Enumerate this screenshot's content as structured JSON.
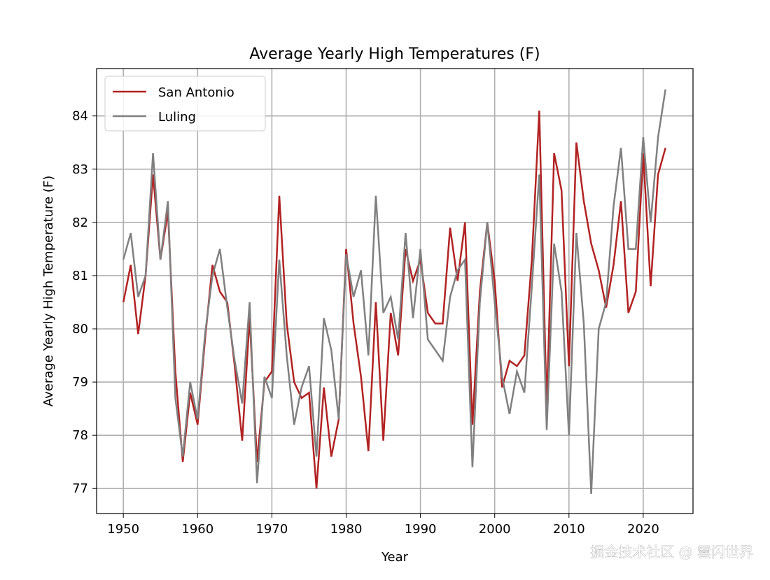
{
  "chart_data": {
    "type": "line",
    "title": "Average Yearly High Temperatures (F)",
    "xlabel": "Year",
    "ylabel": "Average Yearly High Temperature (F)",
    "xlim": [
      1946.4,
      2026.7
    ],
    "ylim": [
      76.53,
      84.89
    ],
    "xticks": [
      1950,
      1960,
      1970,
      1980,
      1990,
      2000,
      2010,
      2020
    ],
    "yticks": [
      77,
      78,
      79,
      80,
      81,
      82,
      83,
      84
    ],
    "grid": true,
    "legend_position": "top-left",
    "x_start": 1950,
    "series": [
      {
        "name": "San Antonio",
        "color": "#b22222",
        "values": [
          80.5,
          81.2,
          79.9,
          81.0,
          82.9,
          81.3,
          82.2,
          79.2,
          77.5,
          78.8,
          78.2,
          79.8,
          81.2,
          80.7,
          80.5,
          79.3,
          77.9,
          80.2,
          77.5,
          79.0,
          79.2,
          82.5,
          80.1,
          79.0,
          78.7,
          78.8,
          77.0,
          78.9,
          77.6,
          78.3,
          81.5,
          80.1,
          79.1,
          77.7,
          80.5,
          77.9,
          80.3,
          79.5,
          81.5,
          80.9,
          81.3,
          80.3,
          80.1,
          80.1,
          81.9,
          80.9,
          82.0,
          78.2,
          80.7,
          82.0,
          80.9,
          78.9,
          79.4,
          79.3,
          79.5,
          81.3,
          84.1,
          78.5,
          83.3,
          82.6,
          79.3,
          83.5,
          82.4,
          81.6,
          81.1,
          80.4,
          81.2,
          82.4,
          80.3,
          80.7,
          83.3,
          80.8,
          82.9,
          83.4
        ]
      },
      {
        "name": "Luling",
        "color": "#808080",
        "values": [
          81.3,
          81.8,
          80.6,
          81.0,
          83.3,
          81.3,
          82.4,
          78.7,
          77.6,
          79.0,
          78.3,
          79.9,
          81.0,
          81.5,
          80.4,
          79.4,
          78.6,
          80.5,
          77.1,
          79.1,
          78.7,
          81.3,
          79.5,
          78.2,
          78.9,
          79.3,
          77.6,
          80.2,
          79.6,
          78.3,
          81.4,
          80.6,
          81.1,
          79.5,
          82.5,
          80.3,
          80.6,
          79.8,
          81.8,
          80.2,
          81.5,
          79.8,
          79.6,
          79.4,
          80.6,
          81.1,
          81.3,
          77.4,
          80.5,
          82.0,
          80.5,
          79.1,
          78.4,
          79.2,
          78.8,
          80.8,
          82.9,
          78.1,
          81.6,
          80.7,
          78.0,
          81.8,
          80.1,
          76.9,
          80.0,
          80.5,
          82.3,
          83.4,
          81.5,
          81.5,
          83.6,
          82.0,
          83.6,
          84.5
        ]
      }
    ]
  },
  "watermark": "掘金技术社区 @ 雲闪世界"
}
